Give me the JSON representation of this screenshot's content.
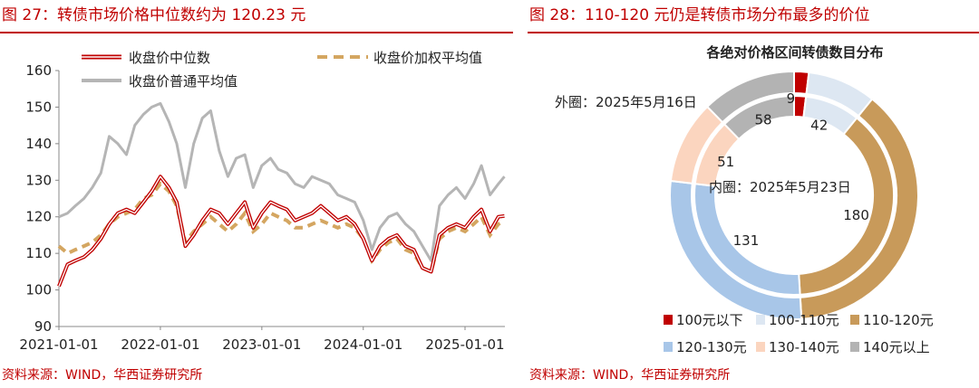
{
  "left": {
    "title": "图 27：转债市场价格中位数约为 120.23 元",
    "source": "资料来源：WIND，华西证券研究所",
    "chart_data": {
      "type": "line",
      "x_ticks": [
        "2021-01-01",
        "2022-01-01",
        "2023-01-01",
        "2024-01-01",
        "2025-01-01"
      ],
      "ylim": [
        90,
        160
      ],
      "y_ticks": [
        90,
        100,
        110,
        120,
        130,
        140,
        150,
        160
      ],
      "legend_position": "top",
      "grid": false,
      "series": [
        {
          "name": "收盘价中位数",
          "color": "#c00000",
          "style": "double",
          "x": [
            "2021-01-01",
            "2021-02-01",
            "2021-03-01",
            "2021-04-01",
            "2021-05-01",
            "2021-06-01",
            "2021-07-01",
            "2021-08-01",
            "2021-09-01",
            "2021-10-01",
            "2021-11-01",
            "2021-12-01",
            "2022-01-01",
            "2022-02-01",
            "2022-03-01",
            "2022-04-01",
            "2022-05-01",
            "2022-06-01",
            "2022-07-01",
            "2022-08-01",
            "2022-09-01",
            "2022-10-01",
            "2022-11-01",
            "2022-12-01",
            "2023-01-01",
            "2023-02-01",
            "2023-03-01",
            "2023-04-01",
            "2023-05-01",
            "2023-06-01",
            "2023-07-01",
            "2023-08-01",
            "2023-09-01",
            "2023-10-01",
            "2023-11-01",
            "2023-12-01",
            "2024-01-01",
            "2024-02-01",
            "2024-03-01",
            "2024-04-01",
            "2024-05-01",
            "2024-06-01",
            "2024-07-01",
            "2024-08-01",
            "2024-09-01",
            "2024-10-01",
            "2024-11-01",
            "2024-12-01",
            "2025-01-01",
            "2025-02-01",
            "2025-03-01",
            "2025-04-01",
            "2025-05-01",
            "2025-05-23"
          ],
          "y": [
            101,
            107,
            108,
            109,
            111,
            114,
            118,
            121,
            122,
            121,
            124,
            127,
            131,
            128,
            124,
            112,
            115,
            119,
            122,
            121,
            118,
            121,
            124,
            117,
            121,
            124,
            123,
            122,
            119,
            120,
            121,
            123,
            121,
            119,
            120,
            118,
            114,
            108,
            112,
            114,
            115,
            112,
            111,
            106,
            105,
            115,
            117,
            118,
            117,
            120,
            122,
            116,
            120,
            120.23
          ]
        },
        {
          "name": "收盘价加权平均值",
          "color": "#d4a661",
          "style": "dashed",
          "x": [
            "2021-01-01",
            "2021-02-01",
            "2021-03-01",
            "2021-04-01",
            "2021-05-01",
            "2021-06-01",
            "2021-07-01",
            "2021-08-01",
            "2021-09-01",
            "2021-10-01",
            "2021-11-01",
            "2021-12-01",
            "2022-01-01",
            "2022-02-01",
            "2022-03-01",
            "2022-04-01",
            "2022-05-01",
            "2022-06-01",
            "2022-07-01",
            "2022-08-01",
            "2022-09-01",
            "2022-10-01",
            "2022-11-01",
            "2022-12-01",
            "2023-01-01",
            "2023-02-01",
            "2023-03-01",
            "2023-04-01",
            "2023-05-01",
            "2023-06-01",
            "2023-07-01",
            "2023-08-01",
            "2023-09-01",
            "2023-10-01",
            "2023-11-01",
            "2023-12-01",
            "2024-01-01",
            "2024-02-01",
            "2024-03-01",
            "2024-04-01",
            "2024-05-01",
            "2024-06-01",
            "2024-07-01",
            "2024-08-01",
            "2024-09-01",
            "2024-10-01",
            "2024-11-01",
            "2024-12-01",
            "2025-01-01",
            "2025-02-01",
            "2025-03-01",
            "2025-04-01",
            "2025-05-01",
            "2025-05-23"
          ],
          "y": [
            112,
            110,
            111,
            112,
            113,
            115,
            118,
            120,
            121,
            122,
            125,
            126,
            129,
            127,
            123,
            113,
            116,
            118,
            120,
            118,
            116,
            118,
            121,
            116,
            118,
            121,
            120,
            119,
            117,
            117,
            118,
            119,
            118,
            117,
            118,
            117,
            114,
            108,
            111,
            113,
            114,
            111,
            110,
            106,
            105,
            114,
            116,
            117,
            116,
            118,
            120,
            115,
            118,
            119
          ]
        },
        {
          "name": "收盘价普通平均值",
          "color": "#b5b5b5",
          "style": "solid",
          "x": [
            "2021-01-01",
            "2021-02-01",
            "2021-03-01",
            "2021-04-01",
            "2021-05-01",
            "2021-06-01",
            "2021-07-01",
            "2021-08-01",
            "2021-09-01",
            "2021-10-01",
            "2021-11-01",
            "2021-12-01",
            "2022-01-01",
            "2022-02-01",
            "2022-03-01",
            "2022-04-01",
            "2022-05-01",
            "2022-06-01",
            "2022-07-01",
            "2022-08-01",
            "2022-09-01",
            "2022-10-01",
            "2022-11-01",
            "2022-12-01",
            "2023-01-01",
            "2023-02-01",
            "2023-03-01",
            "2023-04-01",
            "2023-05-01",
            "2023-06-01",
            "2023-07-01",
            "2023-08-01",
            "2023-09-01",
            "2023-10-01",
            "2023-11-01",
            "2023-12-01",
            "2024-01-01",
            "2024-02-01",
            "2024-03-01",
            "2024-04-01",
            "2024-05-01",
            "2024-06-01",
            "2024-07-01",
            "2024-08-01",
            "2024-09-01",
            "2024-10-01",
            "2024-11-01",
            "2024-12-01",
            "2025-01-01",
            "2025-02-01",
            "2025-03-01",
            "2025-04-01",
            "2025-05-01",
            "2025-05-23"
          ],
          "y": [
            120,
            121,
            123,
            125,
            128,
            132,
            142,
            140,
            137,
            145,
            148,
            150,
            151,
            146,
            140,
            128,
            140,
            147,
            149,
            138,
            131,
            136,
            137,
            128,
            134,
            136,
            133,
            132,
            129,
            128,
            131,
            130,
            129,
            126,
            125,
            124,
            119,
            111,
            117,
            120,
            121,
            118,
            116,
            112,
            108,
            123,
            126,
            128,
            125,
            129,
            134,
            126,
            129,
            131
          ]
        }
      ]
    }
  },
  "right": {
    "title": "图 28：110-120 元仍是转债市场分布最多的价位",
    "source": "资料来源：WIND，华西证券研究所",
    "chart_data": {
      "type": "pie",
      "variant": "double-ring donut",
      "title": "各绝对价格区间转债数目分布",
      "outer_ring_label": "外圈：2025年5月16日",
      "inner_ring_label": "内圈：2025年5月23日",
      "categories": [
        "100元以下",
        "100-110元",
        "110-120元",
        "120-130元",
        "130-140元",
        "140元以上"
      ],
      "colors": [
        "#c00000",
        "#dde7f2",
        "#c89a5a",
        "#a8c6e8",
        "#fbd5bf",
        "#b3b3b3"
      ],
      "series": [
        {
          "name": "外圈：2025年5月16日",
          "values": [
            9,
            42,
            180,
            131,
            51,
            58
          ]
        },
        {
          "name": "内圈：2025年5月23日",
          "values": [
            9,
            42,
            180,
            131,
            51,
            58
          ]
        }
      ],
      "legend_position": "bottom"
    }
  }
}
